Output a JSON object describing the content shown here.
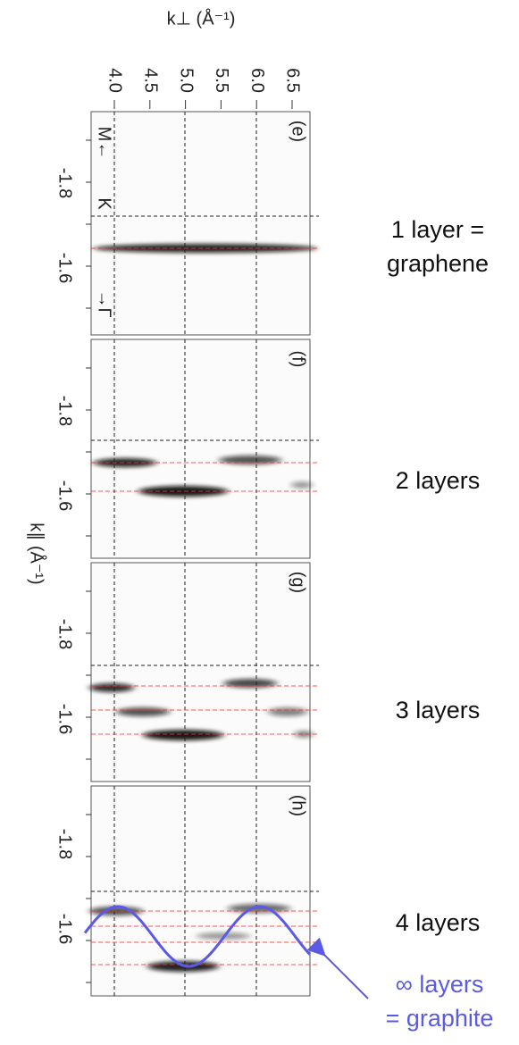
{
  "top_axis": {
    "label": "k⊥ (Å⁻¹)",
    "ticks": [
      "4.0",
      "4.5",
      "5.0",
      "5.5",
      "6.0",
      "6.5"
    ]
  },
  "left_axis": {
    "label": "k∥ (Å⁻¹)"
  },
  "directions": [
    "M←",
    "K",
    "→Γ"
  ],
  "panels": [
    {
      "label": "(e)",
      "ticks": [
        "-1.8",
        "-1.6"
      ],
      "caption": [
        "1 layer =",
        "graphene"
      ]
    },
    {
      "label": "(f)",
      "ticks": [
        "-1.8",
        "-1.6"
      ],
      "caption": [
        "2 layers"
      ]
    },
    {
      "label": "(g)",
      "ticks": [
        "-1.8",
        "-1.6"
      ],
      "caption": [
        "3 layers"
      ]
    },
    {
      "label": "(h)",
      "ticks": [
        "-1.8",
        "-1.6"
      ],
      "caption": [
        "4 layers"
      ]
    }
  ],
  "graphite_caption": [
    "∞ layers",
    "= graphite"
  ]
}
